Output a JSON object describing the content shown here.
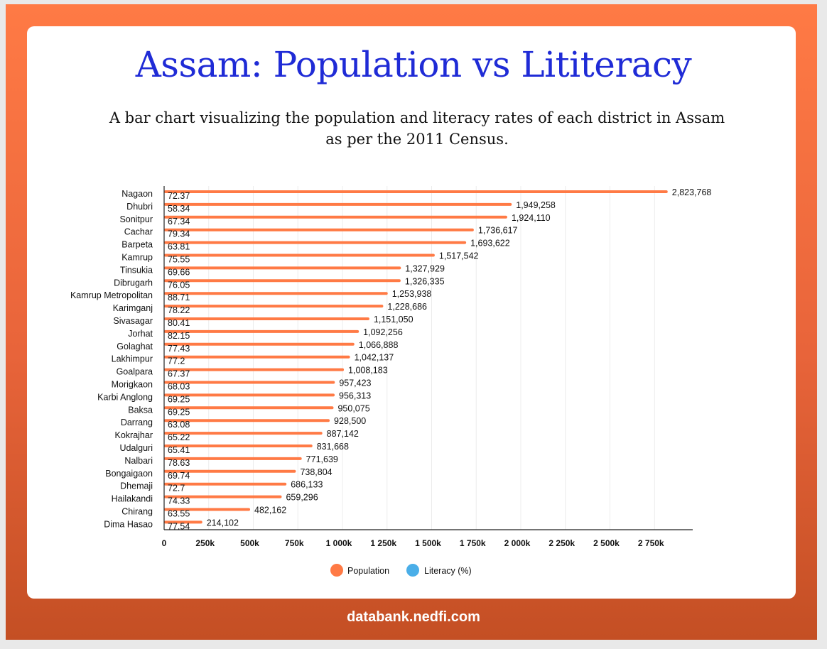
{
  "page": {
    "title": "Assam: Population vs Lititeracy",
    "subtitle": "A bar chart visualizing the population and literacy rates of each district in Assam as per the 2011 Census.",
    "footer": "databank.nedfi.com"
  },
  "colors": {
    "population": "#ff7a45",
    "literacy": "#4aaee8",
    "title": "#1f2bd6"
  },
  "chart_data": {
    "type": "bar",
    "orientation": "horizontal",
    "title": "Assam: Population vs Lititeracy",
    "subtitle": "A bar chart visualizing the population and literacy rates of each district in Assam as per the 2011 Census.",
    "categories": [
      "Nagaon",
      "Dhubri",
      "Sonitpur",
      "Cachar",
      "Barpeta",
      "Kamrup",
      "Tinsukia",
      "Dibrugarh",
      "Kamrup Metropolitan",
      "Karimganj",
      "Sivasagar",
      "Jorhat",
      "Golaghat",
      "Lakhimpur",
      "Goalpara",
      "Morigkaon",
      "Karbi Anglong",
      "Baksa",
      "Darrang",
      "Kokrajhar",
      "Udalguri",
      "Nalbari",
      "Bongaigaon",
      "Dhemaji",
      "Hailakandi",
      "Chirang",
      "Dima Hasao"
    ],
    "series": [
      {
        "name": "Population",
        "values": [
          2823768,
          1949258,
          1924110,
          1736617,
          1693622,
          1517542,
          1327929,
          1326335,
          1253938,
          1228686,
          1151050,
          1092256,
          1066888,
          1042137,
          1008183,
          957423,
          956313,
          950075,
          928500,
          887142,
          831668,
          771639,
          738804,
          686133,
          659296,
          482162,
          214102
        ],
        "labels": [
          "2,823,768",
          "1,949,258",
          "1,924,110",
          "1,736,617",
          "1,693,622",
          "1,517,542",
          "1,327,929",
          "1,326,335",
          "1,253,938",
          "1,228,686",
          "1,151,050",
          "1,092,256",
          "1,066,888",
          "1,042,137",
          "1,008,183",
          "957,423",
          "956,313",
          "950,075",
          "928,500",
          "887,142",
          "831,668",
          "771,639",
          "738,804",
          "686,133",
          "659,296",
          "482,162",
          "214,102"
        ]
      },
      {
        "name": "Literacy (%)",
        "values": [
          72.37,
          58.34,
          67.34,
          79.34,
          63.81,
          75.55,
          69.66,
          76.05,
          88.71,
          78.22,
          80.41,
          82.15,
          77.43,
          77.2,
          67.37,
          68.03,
          69.25,
          69.25,
          63.08,
          65.22,
          65.41,
          78.63,
          69.74,
          72.7,
          74.33,
          63.55,
          77.54
        ],
        "labels": [
          "72.37",
          "58.34",
          "67.34",
          "79.34",
          "63.81",
          "75.55",
          "69.66",
          "76.05",
          "88.71",
          "78.22",
          "80.41",
          "82.15",
          "77.43",
          "77.2",
          "67.37",
          "68.03",
          "69.25",
          "69.25",
          "63.08",
          "65.22",
          "65.41",
          "78.63",
          "69.74",
          "72.7",
          "74.33",
          "63.55",
          "77.54"
        ]
      }
    ],
    "x_ticks": [
      0,
      250000,
      500000,
      750000,
      1000000,
      1250000,
      1500000,
      1750000,
      2000000,
      2250000,
      2500000,
      2750000
    ],
    "x_tick_labels": [
      "0",
      "250k",
      "500k",
      "750k",
      "1 000k",
      "1 250k",
      "1 500k",
      "1 750k",
      "2 000k",
      "2 250k",
      "2 500k",
      "2 750k"
    ],
    "xlim": [
      0,
      2970000
    ],
    "grid": true,
    "legend_position": "bottom-center"
  }
}
